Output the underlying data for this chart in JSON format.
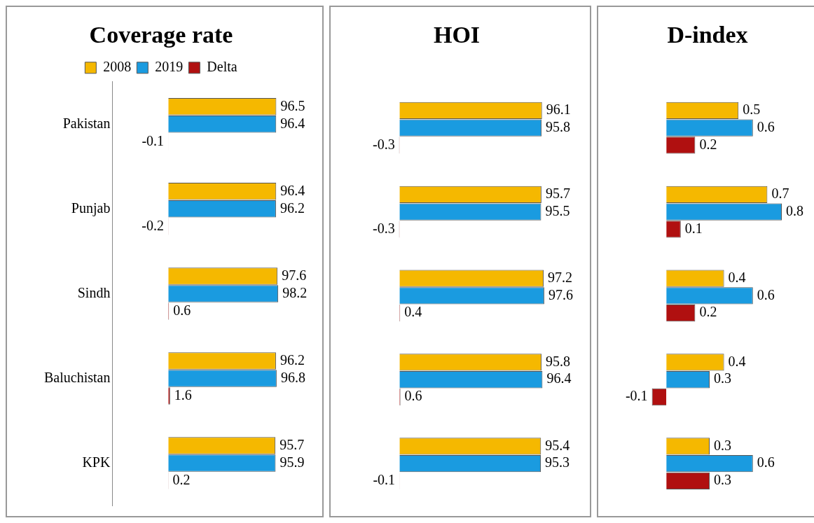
{
  "chart_data": [
    {
      "type": "bar",
      "title": "Coverage rate",
      "orientation": "horizontal",
      "categories": [
        "Pakistan",
        "Punjab",
        "Sindh",
        "Baluchistan",
        "KPK"
      ],
      "series": [
        {
          "name": "2008",
          "color": "#f5b800",
          "values": [
            96.5,
            96.4,
            97.6,
            96.2,
            95.7
          ]
        },
        {
          "name": "2019",
          "color": "#1a9be0",
          "values": [
            96.4,
            96.2,
            98.2,
            96.8,
            95.9
          ]
        },
        {
          "name": "Delta",
          "color": "#b01010",
          "values": [
            -0.1,
            -0.2,
            0.6,
            1.6,
            0.2
          ]
        }
      ],
      "data_labels": true,
      "legend": "top",
      "grid": false
    },
    {
      "type": "bar",
      "title": "HOI",
      "orientation": "horizontal",
      "categories": [
        null,
        null,
        null,
        null,
        null
      ],
      "series": [
        {
          "color": "#f5b800",
          "values": [
            96.1,
            95.7,
            97.2,
            95.8,
            95.4
          ]
        },
        {
          "color": "#1a9be0",
          "values": [
            95.8,
            95.5,
            97.6,
            96.4,
            95.3
          ]
        },
        {
          "color": "#b01010",
          "values": [
            -0.3,
            -0.3,
            0.4,
            0.6,
            -0.1
          ]
        }
      ],
      "data_labels": true,
      "grid": false
    },
    {
      "type": "bar",
      "title": "D-index",
      "orientation": "horizontal",
      "categories": [
        null,
        null,
        null,
        null,
        null
      ],
      "series": [
        {
          "color": "#f5b800",
          "values": [
            0.5,
            0.7,
            0.4,
            0.4,
            0.3
          ]
        },
        {
          "color": "#1a9be0",
          "values": [
            0.6,
            0.8,
            0.6,
            0.3,
            0.6
          ]
        },
        {
          "color": "#b01010",
          "values": [
            0.2,
            0.1,
            0.2,
            -0.1,
            0.3
          ]
        }
      ],
      "data_labels": true,
      "grid": false
    }
  ]
}
